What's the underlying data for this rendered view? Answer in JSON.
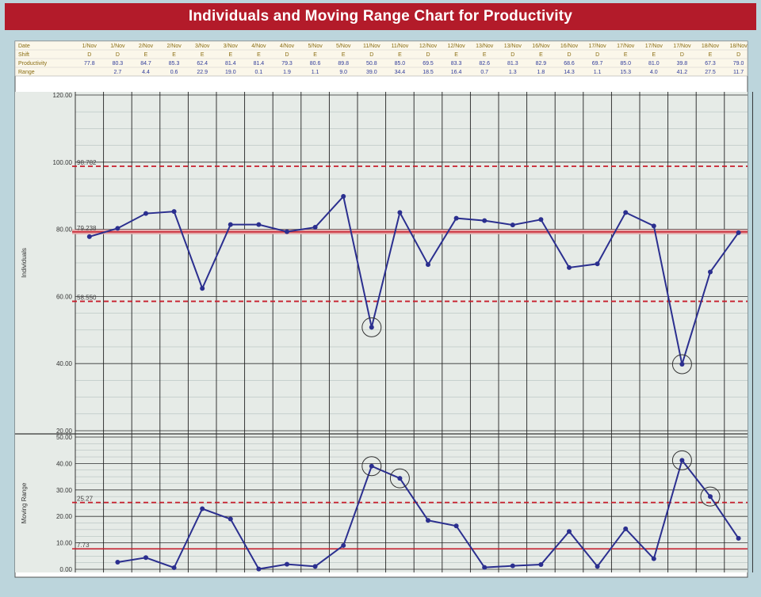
{
  "title": "Individuals and Moving Range Chart for Productivity",
  "colors": {
    "title_bg": "#b31b2a",
    "line": "#2b2f8f",
    "limit": "#c81e2c",
    "center_band": "#e3a9a9",
    "plot_bg": "#e6ebe7",
    "grid": "#222222",
    "table_header_text": "#8a6d12",
    "table_value_text": "#2f3b9a"
  },
  "table": {
    "row_labels": [
      "Date",
      "Shift",
      "Productivity",
      "Range"
    ],
    "dates": [
      "1/Nov",
      "1/Nov",
      "2/Nov",
      "2/Nov",
      "3/Nov",
      "3/Nov",
      "4/Nov",
      "4/Nov",
      "5/Nov",
      "5/Nov",
      "11/Nov",
      "11/Nov",
      "12/Nov",
      "12/Nov",
      "13/Nov",
      "13/Nov",
      "16/Nov",
      "16/Nov",
      "17/Nov",
      "17/Nov",
      "17/Nov",
      "17/Nov",
      "18/Nov",
      "18/Nov"
    ],
    "shifts": [
      "D",
      "D",
      "E",
      "E",
      "E",
      "E",
      "E",
      "D",
      "E",
      "E",
      "D",
      "E",
      "D",
      "E",
      "E",
      "D",
      "E",
      "D",
      "D",
      "E",
      "E",
      "D",
      "E",
      "D"
    ],
    "productivity": [
      "77.8",
      "80.3",
      "84.7",
      "85.3",
      "62.4",
      "81.4",
      "81.4",
      "79.3",
      "80.6",
      "89.8",
      "50.8",
      "85.0",
      "69.5",
      "83.3",
      "82.6",
      "81.3",
      "82.9",
      "68.6",
      "69.7",
      "85.0",
      "81.0",
      "39.8",
      "67.3",
      "79.0"
    ],
    "range": [
      "",
      "2.7",
      "4.4",
      "0.6",
      "22.9",
      "19.0",
      "0.1",
      "1.9",
      "1.1",
      "9.0",
      "39.0",
      "34.4",
      "18.5",
      "16.4",
      "0.7",
      "1.3",
      "1.8",
      "14.3",
      "1.1",
      "15.3",
      "4.0",
      "41.2",
      "27.5",
      "11.7"
    ]
  },
  "labels": {
    "individuals_axis": "Individuals",
    "moving_range_axis": "Moving Range",
    "ucl_individuals": "98.782",
    "center_individuals": "79.238",
    "lcl_individuals": "58.550",
    "ucl_mr": "25.27",
    "center_mr": "7.73"
  },
  "chart_data": [
    {
      "type": "line",
      "ylabel": "Individuals",
      "ylim": [
        20,
        120
      ],
      "yticks": [
        "120.00",
        "100.00",
        "80.00",
        "60.00",
        "40.00",
        "20.00"
      ],
      "ytick_values": [
        120,
        100,
        80,
        60,
        40,
        20
      ],
      "series": [
        {
          "values": [
            77.8,
            80.3,
            84.7,
            85.3,
            62.4,
            81.4,
            81.4,
            79.3,
            80.6,
            89.8,
            50.8,
            85.0,
            69.5,
            83.3,
            82.6,
            81.3,
            82.9,
            68.6,
            69.7,
            85.0,
            81.0,
            39.8,
            67.3,
            79.0
          ]
        }
      ],
      "ucl": 98.782,
      "center": 79.238,
      "lcl": 58.55,
      "circled_points": [
        10,
        21
      ],
      "grid": true
    },
    {
      "type": "line",
      "ylabel": "Moving Range",
      "ylim": [
        0,
        50
      ],
      "yticks": [
        "50.00",
        "40.00",
        "30.00",
        "20.00",
        "10.00",
        "0.00"
      ],
      "ytick_values": [
        50,
        40,
        30,
        20,
        10,
        0
      ],
      "series": [
        {
          "values": [
            null,
            2.7,
            4.4,
            0.6,
            22.9,
            19.0,
            0.1,
            1.9,
            1.1,
            9.0,
            39.0,
            34.4,
            18.5,
            16.4,
            0.7,
            1.3,
            1.8,
            14.3,
            1.1,
            15.3,
            4.0,
            41.2,
            27.5,
            11.7
          ]
        }
      ],
      "ucl": 25.27,
      "center": 7.73,
      "circled_points": [
        10,
        11,
        21,
        22
      ],
      "grid": true
    }
  ]
}
